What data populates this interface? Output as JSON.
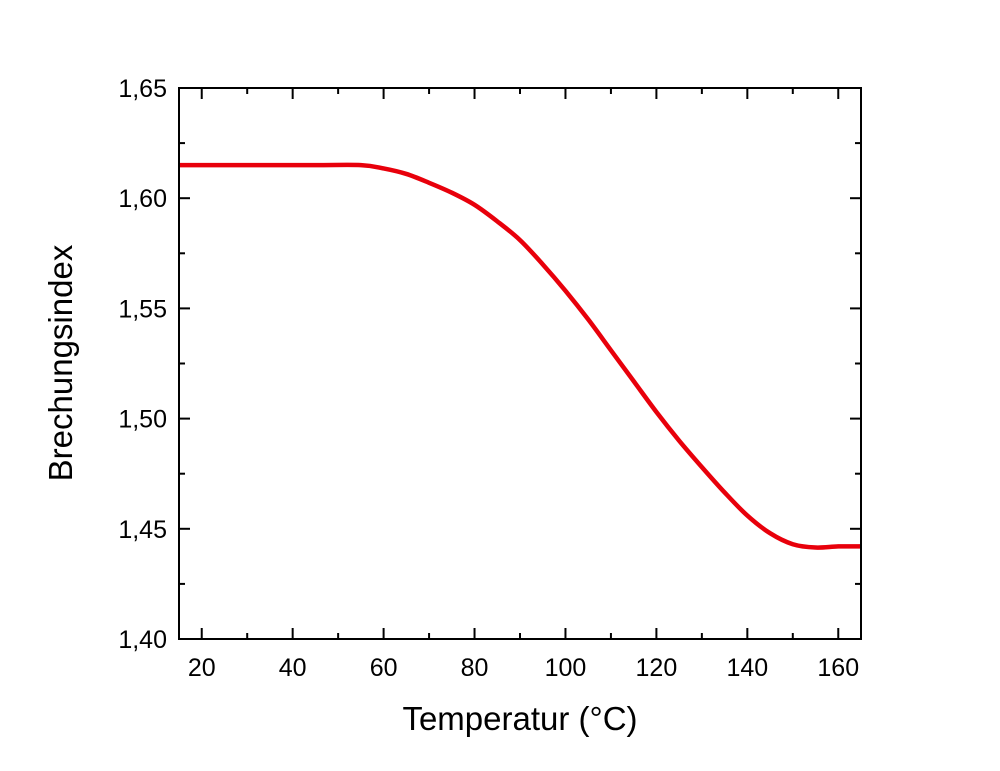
{
  "chart_data": {
    "type": "line",
    "title": "",
    "xlabel": "Temperatur (°C)",
    "ylabel": "Brechungsindex",
    "xlim": [
      15,
      165
    ],
    "ylim": [
      1.4,
      1.65
    ],
    "xticks": [
      20,
      40,
      60,
      80,
      100,
      120,
      140,
      160
    ],
    "xtick_labels": [
      "20",
      "40",
      "60",
      "80",
      "100",
      "120",
      "140",
      "160"
    ],
    "yticks": [
      1.4,
      1.45,
      1.5,
      1.55,
      1.6,
      1.65
    ],
    "ytick_labels": [
      "1,40",
      "1,45",
      "1,50",
      "1,55",
      "1,60",
      "1,65"
    ],
    "grid": false,
    "series": [
      {
        "color": "#e8000b",
        "x": [
          15,
          30,
          45,
          55,
          60,
          65,
          70,
          75,
          80,
          85,
          90,
          95,
          100,
          105,
          110,
          115,
          120,
          125,
          130,
          135,
          140,
          145,
          150,
          155,
          160,
          165
        ],
        "y": [
          1.615,
          1.615,
          1.615,
          1.615,
          1.6135,
          1.611,
          1.607,
          1.6025,
          1.597,
          1.5895,
          1.581,
          1.57,
          1.558,
          1.545,
          1.531,
          1.517,
          1.503,
          1.49,
          1.478,
          1.4665,
          1.456,
          1.448,
          1.443,
          1.4415,
          1.442,
          1.442
        ]
      }
    ]
  }
}
